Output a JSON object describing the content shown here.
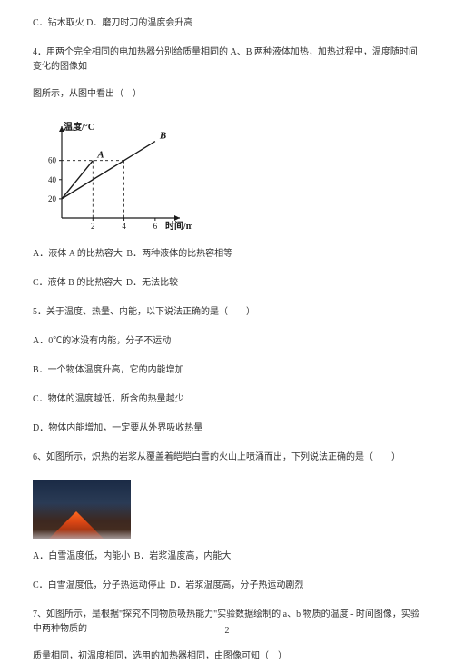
{
  "q3_tail": {
    "opt_c": "C．钻木取火",
    "opt_d": "D．磨刀时刀的温度会升高"
  },
  "q4": {
    "stem_l1": "4．用两个完全相同的电加热器分别给质量相同的 A、B 两种液体加热，加热过程中，温度随时间变化的图像如",
    "stem_l2": "图所示，从图中看出（　）",
    "opt_a": "A．液体 A 的比热容大",
    "opt_b": "B．两种液体的比热容相等",
    "opt_c": "C．液体 B 的比热容大",
    "opt_d": "D．无法比较",
    "chart": {
      "type": "line",
      "y_label": "温度/°C",
      "x_label": "时间/min",
      "x_ticks": [
        2,
        4,
        6
      ],
      "y_ticks": [
        20,
        40,
        60
      ],
      "axis_color": "#1a1a1a",
      "line_color": "#1a1a1a",
      "series": {
        "A": {
          "label": "A",
          "points": [
            [
              0,
              20
            ],
            [
              2,
              60
            ]
          ],
          "stroke": "#1a1a1a"
        },
        "B": {
          "label": "B",
          "points": [
            [
              0,
              20
            ],
            [
              4,
              60
            ],
            [
              6,
              80
            ]
          ],
          "stroke": "#1a1a1a"
        }
      },
      "y_range": [
        0,
        90
      ],
      "x_range": [
        0,
        7
      ]
    }
  },
  "q5": {
    "stem": "5．关于温度、热量、内能，以下说法正确的是（　　）",
    "opt_a": "A．0℃的冰没有内能，分子不运动",
    "opt_b": "B．一个物体温度升高，它的内能增加",
    "opt_c": "C．物体的温度越低，所含的热量越少",
    "opt_d": "D．物体内能增加，一定要从外界吸收热量"
  },
  "q6": {
    "stem": "6、如图所示，炽热的岩浆从覆盖着皑皑白雪的火山上喷涌而出，下列说法正确的是（　　）",
    "opt_a": "A．白雪温度低，内能小",
    "opt_b": "B．岩浆温度高，内能大",
    "opt_c": "C．白雪温度低，分子热运动停止",
    "opt_d": "D．岩浆温度高，分子热运动剧烈"
  },
  "q7": {
    "stem_l1": "7、如图所示，是根据\"探究不同物质吸热能力\"实验数据绘制的 a、b 物质的温度 - 时间图像，实验中两种物质的",
    "stem_l2": "质量相同，初温度相同，选用的加热器相同，由图像可知（　）"
  },
  "page_number": "2"
}
